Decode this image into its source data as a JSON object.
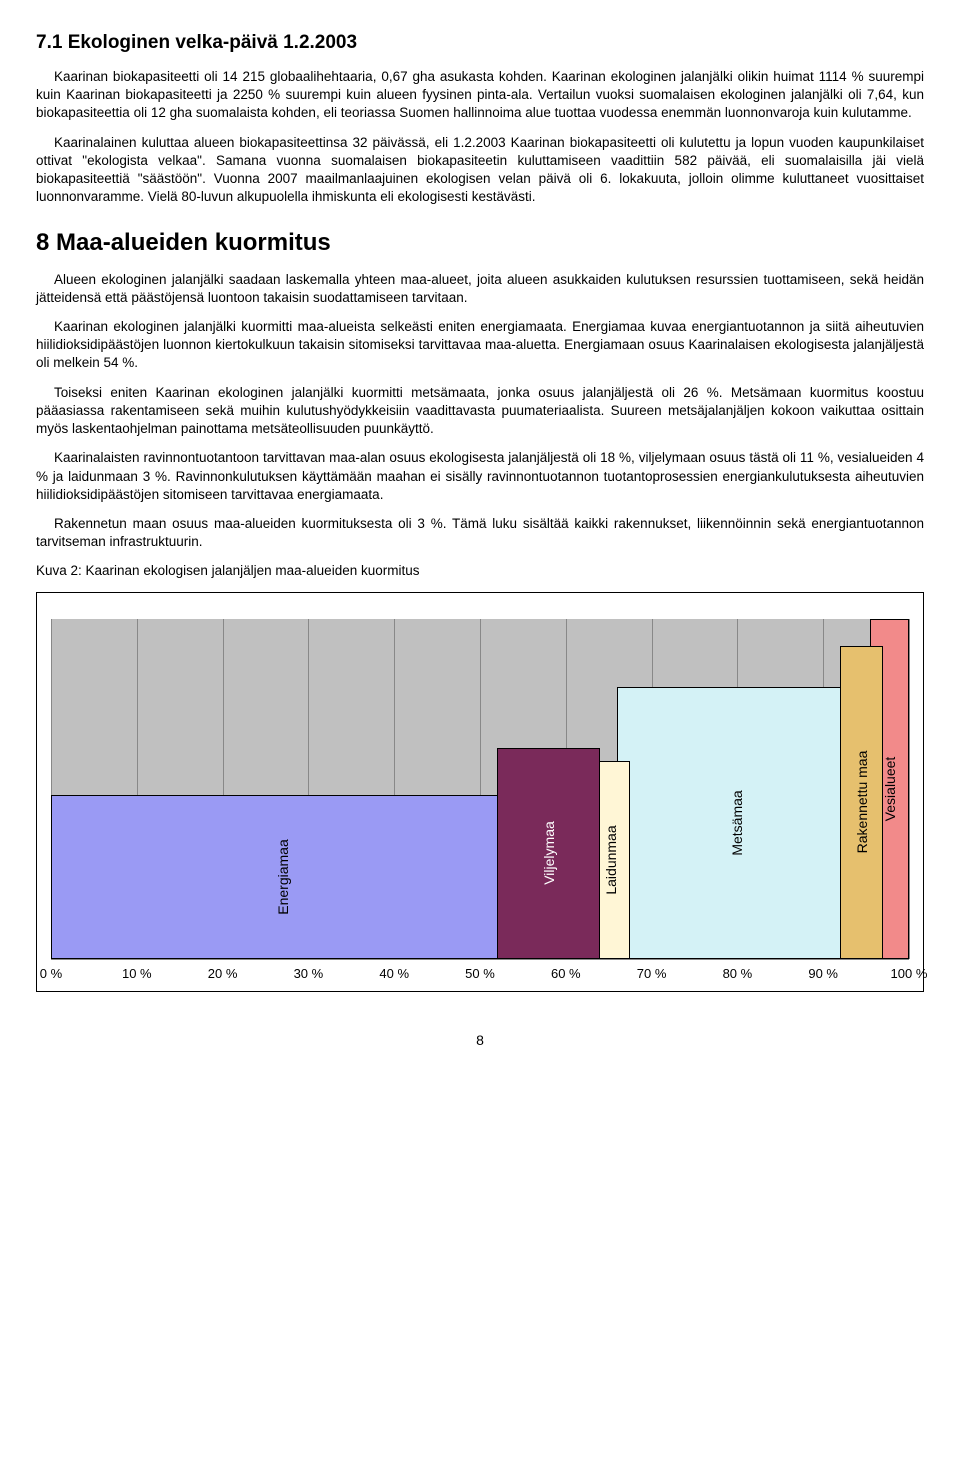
{
  "section71": {
    "title": "7.1 Ekologinen velka-päivä 1.2.2003",
    "p1": "Kaarinan biokapasiteetti oli 14 215 globaalihehtaaria, 0,67 gha asukasta kohden. Kaarinan ekologinen jalanjälki olikin huimat 1114 % suurempi kuin Kaarinan biokapasiteetti ja 2250 % suurempi kuin alueen fyysinen pinta-ala. Vertailun vuoksi suomalaisen ekologinen jalanjälki oli 7,64, kun biokapasiteettia oli 12 gha suomalaista kohden, eli teoriassa Suomen hallinnoima alue tuottaa vuodessa enemmän luonnonvaroja kuin kulutamme.",
    "p2": "Kaarinalainen kuluttaa alueen biokapasiteettinsa 32 päivässä, eli 1.2.2003 Kaarinan biokapasiteetti oli kulutettu ja lopun vuoden kaupunkilaiset ottivat \"ekologista velkaa\". Samana vuonna suomalaisen biokapasiteetin kuluttamiseen vaadittiin 582 päivää, eli suomalaisilla jäi vielä biokapasiteettiä \"säästöön\". Vuonna 2007 maailmanlaajuinen ekologisen velan päivä oli 6. lokakuuta, jolloin olimme kuluttaneet vuosittaiset luonnonvaramme. Vielä 80-luvun alkupuolella ihmiskunta eli ekologisesti kestävästi."
  },
  "section8": {
    "title": "8 Maa-alueiden kuormitus",
    "p1": "Alueen ekologinen jalanjälki saadaan laskemalla yhteen maa-alueet, joita alueen asukkaiden kulutuksen resurssien tuottamiseen, sekä heidän jätteidensä että päästöjensä luontoon takaisin suodattamiseen tarvitaan.",
    "p2": "Kaarinan ekologinen jalanjälki kuormitti maa-alueista selkeästi eniten energiamaata. Energiamaa kuvaa energiantuotannon ja siitä aiheutuvien hiilidioksidipäästöjen luonnon kiertokulkuun takaisin sitomiseksi tarvittavaa maa-aluetta. Energiamaan osuus Kaarinalaisen ekologisesta jalanjäljestä oli melkein 54 %.",
    "p3": "Toiseksi eniten Kaarinan ekologinen jalanjälki kuormitti metsämaata, jonka osuus jalanjäljestä oli 26 %. Metsämaan kuormitus koostuu pääasiassa rakentamiseen sekä muihin kulutushyödykkeisiin vaadittavasta puumateriaalista. Suureen metsäjalanjäljen kokoon vaikuttaa osittain myös laskentaohjelman painottama metsäteollisuuden puunkäyttö.",
    "p4": "Kaarinalaisten ravinnontuotantoon tarvittavan maa-alan osuus ekologisesta jalanjäljestä oli 18 %, viljelymaan osuus tästä oli 11 %, vesialueiden 4 % ja laidunmaan 3 %. Ravinnonkulutuksen käyttämään maahan ei sisälly ravinnontuotannon tuotantoprosessien energiankulutuksesta aiheutuvien hiilidioksidipäästöjen sitomiseen tarvittavaa energiamaata.",
    "p5": "Rakennetun maan osuus maa-alueiden kuormituksesta oli 3 %. Tämä luku sisältää kaikki rakennukset, liikennöinnin sekä energiantuotannon tarvitseman infrastruktuurin.",
    "caption": "Kuva 2: Kaarinan ekologisen jalanjäljen maa-alueiden kuormitus"
  },
  "chart": {
    "type": "stacked-bar-100",
    "background_color": "#c0c0c0",
    "grid_color": "#888888",
    "x_ticks": [
      "0 %",
      "10 %",
      "20 %",
      "30 %",
      "40 %",
      "50 %",
      "60 %",
      "70 %",
      "80 %",
      "90 %",
      "100 %"
    ],
    "segments": [
      {
        "key": "energiamaa",
        "label": "Energiamaa",
        "start": 0,
        "width": 54,
        "height_pct": 48,
        "color": "#9a9af4",
        "z": 1
      },
      {
        "key": "viljelymaa",
        "label": "Viljelymaa",
        "start": 52,
        "width": 12,
        "height_pct": 62,
        "color": "#7a2a5a",
        "z": 3,
        "label_color": "#ffffff"
      },
      {
        "key": "laidunmaa",
        "label": "Laidunmaa",
        "start": 63,
        "width": 4.5,
        "height_pct": 58,
        "color": "#fff6d6",
        "z": 2
      },
      {
        "key": "metsamaa",
        "label": "Metsämaa",
        "start": 66,
        "width": 28,
        "height_pct": 80,
        "color": "#d4f2f6",
        "z": 1
      },
      {
        "key": "rakennettu",
        "label": "Rakennettu maa",
        "start": 92,
        "width": 5,
        "height_pct": 92,
        "color": "#e6c06e",
        "z": 3
      },
      {
        "key": "vesialueet",
        "label": "Vesialueet",
        "start": 95.5,
        "width": 4.5,
        "height_pct": 100,
        "color": "#f28a8a",
        "z": 2
      }
    ]
  },
  "page_number": "8"
}
